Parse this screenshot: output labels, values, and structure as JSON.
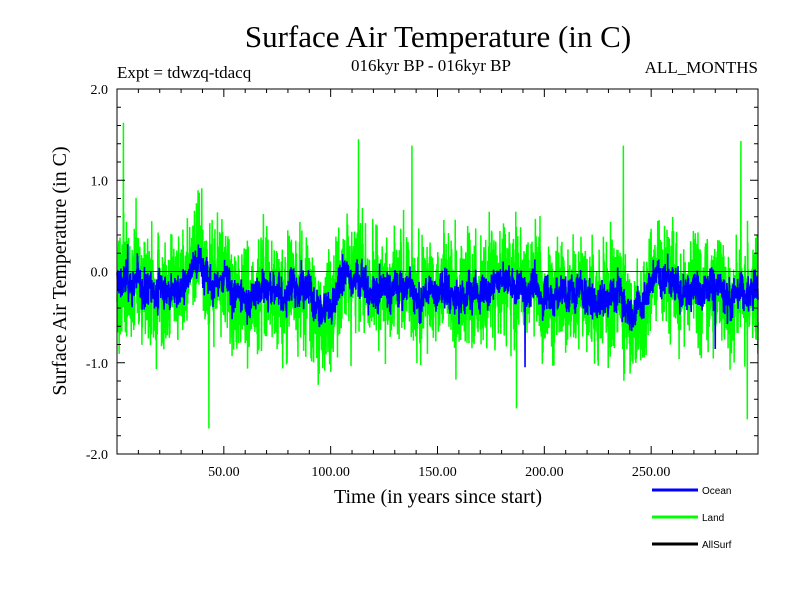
{
  "chart_data": {
    "type": "line",
    "title": "Surface Air Temperature (in C)",
    "subtitle_left": "Expt = tdwzq-tdacq",
    "subtitle_center": "016kyr BP - 016kyr BP",
    "subtitle_right": "ALL_MONTHS",
    "xlabel": "Time (in years since start)",
    "ylabel": "Surface Air Temperature (in C)",
    "xlim": [
      0,
      300
    ],
    "ylim": [
      -2.0,
      2.0
    ],
    "x_ticks": [
      50,
      100,
      150,
      200,
      250
    ],
    "x_tick_labels": [
      "50.00",
      "100.00",
      "150.00",
      "200.00",
      "250.00"
    ],
    "y_ticks": [
      -2.0,
      -1.0,
      0.0,
      1.0,
      2.0
    ],
    "y_tick_labels": [
      "-2.0",
      "-1.0",
      "0.0",
      "1.0",
      "2.0"
    ],
    "zero_line": true,
    "grid": false,
    "legend_position": "bottom-right",
    "n_points": 3600,
    "series": [
      {
        "name": "Land",
        "color": "#00ff00",
        "approx_mean": -0.15,
        "approx_range": [
          -1.72,
          1.63
        ],
        "notable_peaks": [
          [
            3,
            1.63
          ],
          [
            43,
            -1.72
          ],
          [
            113,
            1.45
          ],
          [
            138,
            1.38
          ],
          [
            187,
            -1.5
          ],
          [
            237,
            1.38
          ],
          [
            292,
            1.43
          ],
          [
            295,
            -1.62
          ]
        ]
      },
      {
        "name": "Ocean",
        "color": "#0000ff",
        "approx_mean": -0.17,
        "approx_range": [
          -1.05,
          0.3
        ],
        "notable_peaks": [
          [
            5,
            0.3
          ],
          [
            191,
            -1.05
          ],
          [
            280,
            -0.85
          ]
        ]
      },
      {
        "name": "AllSurf",
        "color": "#000000"
      }
    ]
  }
}
